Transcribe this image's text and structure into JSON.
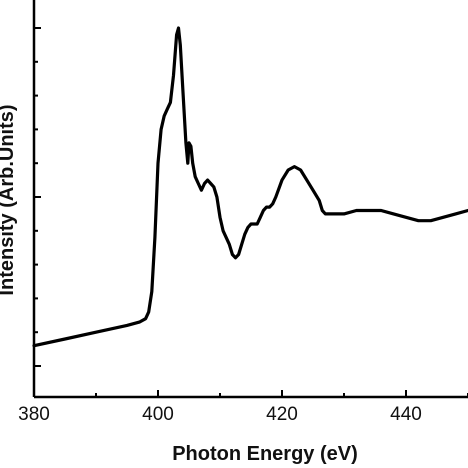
{
  "chart_data": {
    "type": "line",
    "title": "",
    "xlabel": "Photon Energy (eV)",
    "ylabel": "Intensity (Arb.Units)",
    "xlim": [
      380,
      450
    ],
    "ylim": [
      0.0,
      1.0
    ],
    "x_ticks": [
      380,
      400,
      420,
      440
    ],
    "y_tick_labels_shown": false,
    "grid": false,
    "legend": "none",
    "colors": {
      "line": "#000000",
      "axis": "#000000",
      "background": "#ffffff"
    },
    "series": [
      {
        "x": [
          380,
          385,
          390,
          395,
          397,
          398,
          398.5,
          399,
          399.5,
          400,
          400.5,
          401,
          401.5,
          402,
          402.5,
          403,
          403.3,
          403.6,
          404,
          404.5,
          404.8,
          405,
          405.3,
          405.6,
          406,
          406.5,
          407,
          407.5,
          408,
          408.5,
          409,
          409.5,
          410,
          410.5,
          411,
          411.5,
          412,
          412.5,
          413,
          413.5,
          414,
          414.5,
          415,
          415.5,
          416,
          416.5,
          417,
          417.5,
          418,
          418.5,
          419,
          420,
          421,
          422,
          423,
          424,
          425,
          426,
          426.5,
          427,
          428,
          430,
          432,
          434,
          436,
          438,
          440,
          442,
          444,
          446,
          448,
          450
        ],
        "y": [
          0.06,
          0.08,
          0.1,
          0.12,
          0.13,
          0.14,
          0.16,
          0.22,
          0.38,
          0.6,
          0.7,
          0.74,
          0.76,
          0.78,
          0.86,
          0.98,
          1.0,
          0.95,
          0.82,
          0.66,
          0.6,
          0.66,
          0.65,
          0.6,
          0.56,
          0.54,
          0.52,
          0.54,
          0.55,
          0.54,
          0.53,
          0.5,
          0.44,
          0.4,
          0.38,
          0.36,
          0.33,
          0.32,
          0.33,
          0.36,
          0.39,
          0.41,
          0.42,
          0.42,
          0.42,
          0.44,
          0.46,
          0.47,
          0.47,
          0.48,
          0.5,
          0.55,
          0.58,
          0.59,
          0.58,
          0.55,
          0.52,
          0.49,
          0.46,
          0.45,
          0.45,
          0.45,
          0.46,
          0.46,
          0.46,
          0.45,
          0.44,
          0.43,
          0.43,
          0.44,
          0.45,
          0.46
        ]
      }
    ]
  }
}
